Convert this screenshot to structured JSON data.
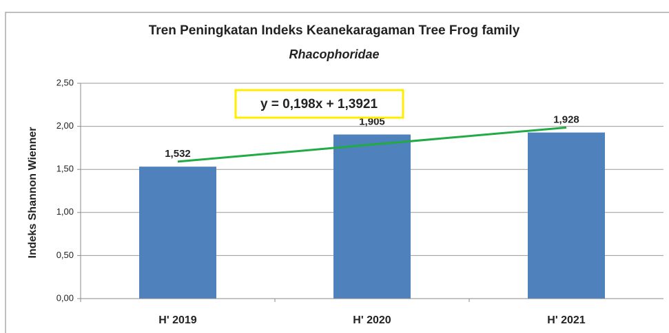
{
  "chart_data": {
    "type": "bar",
    "title": "Tren Peningkatan Indeks Keanekaragaman Tree Frog family",
    "subtitle": "Rhacophoridae",
    "y_label": "Indeks Shannon Wienner",
    "categories": [
      "H' 2019",
      "H' 2020",
      "H' 2021"
    ],
    "values": [
      1.532,
      1.905,
      1.928
    ],
    "value_labels": [
      "1,532",
      "1,905",
      "1,928"
    ],
    "color": "#4f81bd",
    "ylim": [
      0,
      2.5
    ],
    "yticks": [
      {
        "value": 0,
        "label": "0,00"
      },
      {
        "value": 0.5,
        "label": "0,50"
      },
      {
        "value": 1,
        "label": "1,00"
      },
      {
        "value": 1.5,
        "label": "1,50"
      },
      {
        "value": 2,
        "label": "2,00"
      },
      {
        "value": 2.5,
        "label": "2,50"
      }
    ],
    "grid": true,
    "trendline": {
      "label": "y = 0,198x + 1,3921",
      "slope": 0.198,
      "intercept": 1.3921,
      "color": "#22aa44"
    }
  }
}
